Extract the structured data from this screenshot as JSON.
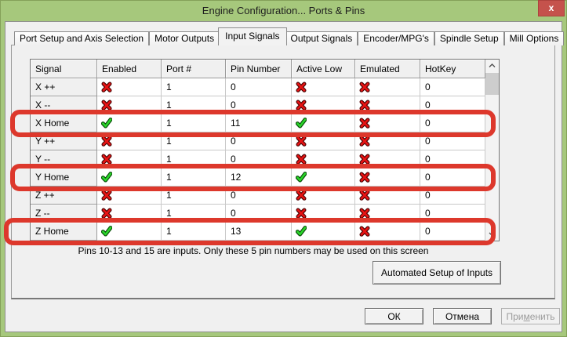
{
  "window": {
    "title": "Engine Configuration... Ports & Pins",
    "close_label": "x"
  },
  "tabs": [
    {
      "label": "Port Setup and Axis Selection",
      "active": false
    },
    {
      "label": "Motor Outputs",
      "active": false
    },
    {
      "label": "Input Signals",
      "active": true
    },
    {
      "label": "Output Signals",
      "active": false
    },
    {
      "label": "Encoder/MPG's",
      "active": false
    },
    {
      "label": "Spindle Setup",
      "active": false
    },
    {
      "label": "Mill Options",
      "active": false
    }
  ],
  "table": {
    "columns": [
      "Signal",
      "Enabled",
      "Port #",
      "Pin Number",
      "Active Low",
      "Emulated",
      "HotKey"
    ],
    "rows": [
      {
        "signal": "X ++",
        "enabled": "cross",
        "port": "1",
        "pin": "0",
        "active_low": "cross",
        "emulated": "cross",
        "hotkey": "0",
        "highlighted": false
      },
      {
        "signal": "X --",
        "enabled": "cross",
        "port": "1",
        "pin": "0",
        "active_low": "cross",
        "emulated": "cross",
        "hotkey": "0",
        "highlighted": false
      },
      {
        "signal": "X Home",
        "enabled": "check",
        "port": "1",
        "pin": "11",
        "active_low": "check",
        "emulated": "cross",
        "hotkey": "0",
        "highlighted": true
      },
      {
        "signal": "Y ++",
        "enabled": "cross",
        "port": "1",
        "pin": "0",
        "active_low": "cross",
        "emulated": "cross",
        "hotkey": "0",
        "highlighted": false
      },
      {
        "signal": "Y --",
        "enabled": "cross",
        "port": "1",
        "pin": "0",
        "active_low": "cross",
        "emulated": "cross",
        "hotkey": "0",
        "highlighted": false
      },
      {
        "signal": "Y Home",
        "enabled": "check",
        "port": "1",
        "pin": "12",
        "active_low": "check",
        "emulated": "cross",
        "hotkey": "0",
        "highlighted": true
      },
      {
        "signal": "Z ++",
        "enabled": "cross",
        "port": "1",
        "pin": "0",
        "active_low": "cross",
        "emulated": "cross",
        "hotkey": "0",
        "highlighted": false
      },
      {
        "signal": "Z --",
        "enabled": "cross",
        "port": "1",
        "pin": "0",
        "active_low": "cross",
        "emulated": "cross",
        "hotkey": "0",
        "highlighted": false
      },
      {
        "signal": "Z Home",
        "enabled": "check",
        "port": "1",
        "pin": "13",
        "active_low": "check",
        "emulated": "cross",
        "hotkey": "0",
        "highlighted": true
      }
    ],
    "icons": {
      "check": "check-icon",
      "cross": "cross-icon"
    }
  },
  "scrollbar": {
    "up": "chevron-up-icon",
    "down": "chevron-down-icon"
  },
  "note": "Pins 10-13 and 15 are inputs. Only these 5 pin numbers may be used on this screen",
  "buttons": {
    "automated": "Automated Setup of Inputs",
    "ok": "ОК",
    "cancel": "Отмена",
    "apply": "Применить",
    "apply_underline_index": 3
  },
  "colors": {
    "window_green": "#a6c87c",
    "close_red": "#c5524c",
    "highlight_red": "#dd382c",
    "check_green": "#2ad62a",
    "cross_red": "#e81313",
    "client_gray": "#f0f0f0"
  }
}
